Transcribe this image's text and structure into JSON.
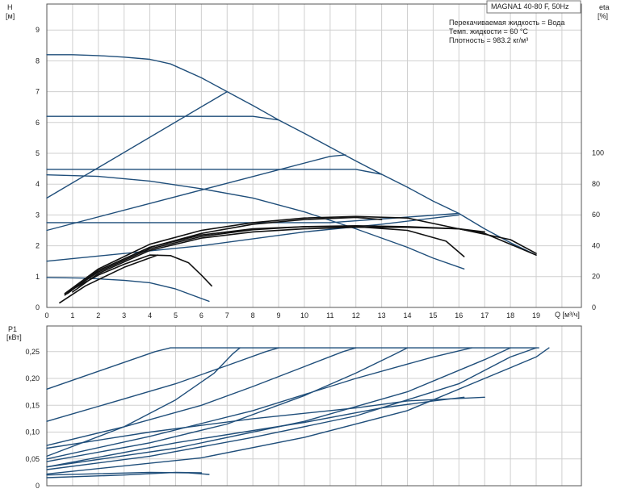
{
  "title": "MAGNA1 40-80 F, 50Hz",
  "annotations": [
    "Перекачиваемая жидкость = Вода",
    "Темп. жидкости = 60 °C",
    "Плотность = 983.2 кг/м³"
  ],
  "colors": {
    "blue": "#1f4e7a",
    "black": "#111111",
    "grid": "#cfcfcf",
    "axis_text": "#222222"
  },
  "chart_data": [
    {
      "type": "line",
      "title": "",
      "xlabel": "Q [м³/ч]",
      "ylabel": "H\n[м]",
      "y2label": "eta\n[%]",
      "xlim": [
        0,
        20.5
      ],
      "ylim": [
        0,
        10
      ],
      "y2lim": [
        0,
        200
      ],
      "xticks": [
        0,
        1,
        2,
        3,
        4,
        5,
        6,
        7,
        8,
        9,
        10,
        11,
        12,
        13,
        14,
        15,
        16,
        17,
        18,
        19
      ],
      "yticks": [
        0,
        1,
        2,
        3,
        4,
        5,
        6,
        7,
        8,
        9
      ],
      "y2ticks": [
        0,
        20,
        40,
        60,
        80,
        100
      ],
      "grid": true,
      "series": [
        {
          "color": "blue",
          "points": [
            [
              0,
              8.2
            ],
            [
              1,
              8.2
            ],
            [
              2,
              8.17
            ],
            [
              3,
              8.12
            ],
            [
              4,
              8.05
            ],
            [
              4.8,
              7.9
            ],
            [
              6,
              7.45
            ],
            [
              7,
              7.0
            ],
            [
              8,
              6.55
            ],
            [
              9,
              6.08
            ],
            [
              10,
              5.65
            ],
            [
              11,
              5.2
            ],
            [
              12,
              4.75
            ],
            [
              13,
              4.32
            ],
            [
              14,
              3.9
            ],
            [
              15,
              3.45
            ],
            [
              16,
              3.05
            ],
            [
              17,
              2.55
            ],
            [
              18,
              2.1
            ],
            [
              19,
              1.7
            ]
          ]
        },
        {
          "color": "blue",
          "points": [
            [
              0,
              6.2
            ],
            [
              8,
              6.2
            ],
            [
              9,
              6.08
            ]
          ]
        },
        {
          "color": "blue",
          "points": [
            [
              0,
              4.48
            ],
            [
              12,
              4.48
            ],
            [
              13,
              4.32
            ]
          ]
        },
        {
          "color": "blue",
          "points": [
            [
              0,
              2.75
            ],
            [
              11,
              2.75
            ],
            [
              16,
              3.05
            ]
          ]
        },
        {
          "color": "blue",
          "points": [
            [
              0,
              3.55
            ],
            [
              7,
              7.0
            ]
          ]
        },
        {
          "color": "blue",
          "points": [
            [
              0,
              2.5
            ],
            [
              11,
              4.9
            ],
            [
              11.6,
              4.95
            ]
          ]
        },
        {
          "color": "blue",
          "points": [
            [
              0,
              1.5
            ],
            [
              6,
              2.0
            ],
            [
              10,
              2.45
            ],
            [
              13,
              2.7
            ],
            [
              16,
              3.0
            ]
          ]
        },
        {
          "color": "blue",
          "points": [
            [
              0,
              4.3
            ],
            [
              2,
              4.25
            ],
            [
              4,
              4.1
            ],
            [
              6,
              3.85
            ],
            [
              8,
              3.55
            ],
            [
              10,
              3.1
            ],
            [
              12,
              2.55
            ],
            [
              14,
              1.95
            ],
            [
              15,
              1.6
            ],
            [
              16.2,
              1.25
            ]
          ]
        },
        {
          "color": "blue",
          "points": [
            [
              0,
              0.97
            ],
            [
              1.5,
              0.95
            ],
            [
              3,
              0.88
            ],
            [
              4,
              0.8
            ],
            [
              5,
              0.6
            ],
            [
              6.3,
              0.2
            ]
          ]
        },
        {
          "color": "black",
          "points": [
            [
              0.8,
              0.5
            ],
            [
              2,
              1.05
            ],
            [
              3,
              1.4
            ],
            [
              4,
              1.7
            ],
            [
              4.8,
              1.68
            ],
            [
              5.5,
              1.45
            ],
            [
              6,
              1.05
            ],
            [
              6.4,
              0.7
            ]
          ]
        },
        {
          "color": "black",
          "points": [
            [
              0.5,
              0.15
            ],
            [
              1.5,
              0.7
            ],
            [
              3,
              1.3
            ],
            [
              4.3,
              1.7
            ]
          ]
        },
        {
          "color": "black",
          "points": [
            [
              0.7,
              0.4
            ],
            [
              2,
              1.2
            ],
            [
              4,
              1.95
            ],
            [
              6,
              2.4
            ],
            [
              8,
              2.7
            ],
            [
              10,
              2.85
            ],
            [
              12,
              2.92
            ],
            [
              13,
              2.85
            ]
          ]
        },
        {
          "color": "black",
          "points": [
            [
              0.7,
              0.45
            ],
            [
              2,
              1.25
            ],
            [
              4,
              2.05
            ],
            [
              6,
              2.5
            ],
            [
              8,
              2.75
            ],
            [
              10,
              2.9
            ],
            [
              12,
              2.95
            ],
            [
              14,
              2.9
            ],
            [
              16,
              2.55
            ],
            [
              17,
              2.45
            ]
          ]
        },
        {
          "color": "black",
          "points": [
            [
              0.8,
              0.45
            ],
            [
              2,
              1.2
            ],
            [
              4,
              1.95
            ],
            [
              6,
              2.35
            ],
            [
              8,
              2.55
            ],
            [
              10,
              2.62
            ],
            [
              12,
              2.62
            ],
            [
              14,
              2.5
            ],
            [
              15.5,
              2.15
            ],
            [
              16.2,
              1.65
            ]
          ]
        },
        {
          "color": "black",
          "points": [
            [
              1,
              0.5
            ],
            [
              2,
              1.1
            ],
            [
              4,
              1.85
            ],
            [
              6,
              2.25
            ],
            [
              8,
              2.45
            ],
            [
              10,
              2.55
            ],
            [
              12,
              2.6
            ],
            [
              14,
              2.6
            ],
            [
              16,
              2.55
            ],
            [
              17,
              2.4
            ],
            [
              19,
              1.7
            ]
          ]
        },
        {
          "color": "black",
          "points": [
            [
              0.8,
              0.48
            ],
            [
              2,
              1.15
            ],
            [
              4,
              1.9
            ],
            [
              6,
              2.3
            ],
            [
              8,
              2.52
            ],
            [
              10,
              2.62
            ],
            [
              12,
              2.65
            ],
            [
              14,
              2.62
            ],
            [
              16,
              2.55
            ],
            [
              18,
              2.2
            ],
            [
              19,
              1.75
            ]
          ]
        }
      ]
    },
    {
      "type": "line",
      "title": "",
      "xlabel": "",
      "ylabel": "P1\n[кВт]",
      "xlim": [
        0,
        20.5
      ],
      "ylim": [
        0,
        0.28
      ],
      "yticks": [
        0,
        0.05,
        0.1,
        0.15,
        0.2,
        0.25
      ],
      "ytick_labels": [
        "0",
        "0,05",
        "0,10",
        "0,15",
        "0,20",
        "0,25"
      ],
      "grid": true,
      "series": [
        {
          "color": "blue",
          "points": [
            [
              0,
              0.18
            ],
            [
              4.2,
              0.25
            ],
            [
              4.8,
              0.257
            ],
            [
              19.1,
              0.257
            ]
          ]
        },
        {
          "color": "blue",
          "points": [
            [
              0,
              0.12
            ],
            [
              3,
              0.162
            ],
            [
              5,
              0.19
            ],
            [
              7,
              0.224
            ],
            [
              8.5,
              0.25
            ],
            [
              9,
              0.257
            ]
          ]
        },
        {
          "color": "blue",
          "points": [
            [
              0,
              0.075
            ],
            [
              3,
              0.11
            ],
            [
              6,
              0.15
            ],
            [
              8,
              0.185
            ],
            [
              10,
              0.222
            ],
            [
              11.5,
              0.25
            ],
            [
              12,
              0.257
            ]
          ]
        },
        {
          "color": "blue",
          "points": [
            [
              0,
              0.05
            ],
            [
              4,
              0.092
            ],
            [
              8,
              0.14
            ],
            [
              12,
              0.2
            ],
            [
              15,
              0.24
            ],
            [
              16.5,
              0.257
            ]
          ]
        },
        {
          "color": "blue",
          "points": [
            [
              0,
              0.055
            ],
            [
              3,
              0.11
            ],
            [
              5,
              0.16
            ],
            [
              6.5,
              0.21
            ],
            [
              7.2,
              0.245
            ],
            [
              7.5,
              0.257
            ]
          ]
        },
        {
          "color": "blue",
          "points": [
            [
              0,
              0.045
            ],
            [
              4,
              0.08
            ],
            [
              7,
              0.115
            ],
            [
              10,
              0.168
            ],
            [
              12,
              0.21
            ],
            [
              13.5,
              0.245
            ],
            [
              14,
              0.257
            ]
          ]
        },
        {
          "color": "blue",
          "points": [
            [
              0,
              0.035
            ],
            [
              5,
              0.07
            ],
            [
              10,
              0.12
            ],
            [
              14,
              0.175
            ],
            [
              17,
              0.235
            ],
            [
              18,
              0.257
            ]
          ]
        },
        {
          "color": "blue",
          "points": [
            [
              0,
              0.07
            ],
            [
              4,
              0.1
            ],
            [
              8,
              0.125
            ],
            [
              12,
              0.145
            ],
            [
              14,
              0.158
            ],
            [
              17,
              0.165
            ]
          ]
        },
        {
          "color": "blue",
          "points": [
            [
              0,
              0.035
            ],
            [
              5,
              0.08
            ],
            [
              10,
              0.118
            ],
            [
              13,
              0.145
            ],
            [
              15,
              0.158
            ],
            [
              16.2,
              0.165
            ]
          ]
        },
        {
          "color": "blue",
          "points": [
            [
              0,
              0.03
            ],
            [
              4,
              0.055
            ],
            [
              8,
              0.09
            ],
            [
              12,
              0.13
            ],
            [
              16,
              0.19
            ],
            [
              18,
              0.24
            ],
            [
              19,
              0.257
            ]
          ]
        },
        {
          "color": "blue",
          "points": [
            [
              0,
              0.022
            ],
            [
              6,
              0.052
            ],
            [
              10,
              0.09
            ],
            [
              14,
              0.14
            ],
            [
              17,
              0.2
            ],
            [
              19,
              0.24
            ],
            [
              19.5,
              0.257
            ]
          ]
        },
        {
          "color": "blue",
          "points": [
            [
              0,
              0.02
            ],
            [
              4,
              0.025
            ],
            [
              5.5,
              0.024
            ],
            [
              6.3,
              0.021
            ]
          ]
        },
        {
          "color": "blue",
          "points": [
            [
              0,
              0.015
            ],
            [
              3,
              0.02
            ],
            [
              5,
              0.025
            ],
            [
              6,
              0.024
            ]
          ]
        }
      ]
    }
  ]
}
